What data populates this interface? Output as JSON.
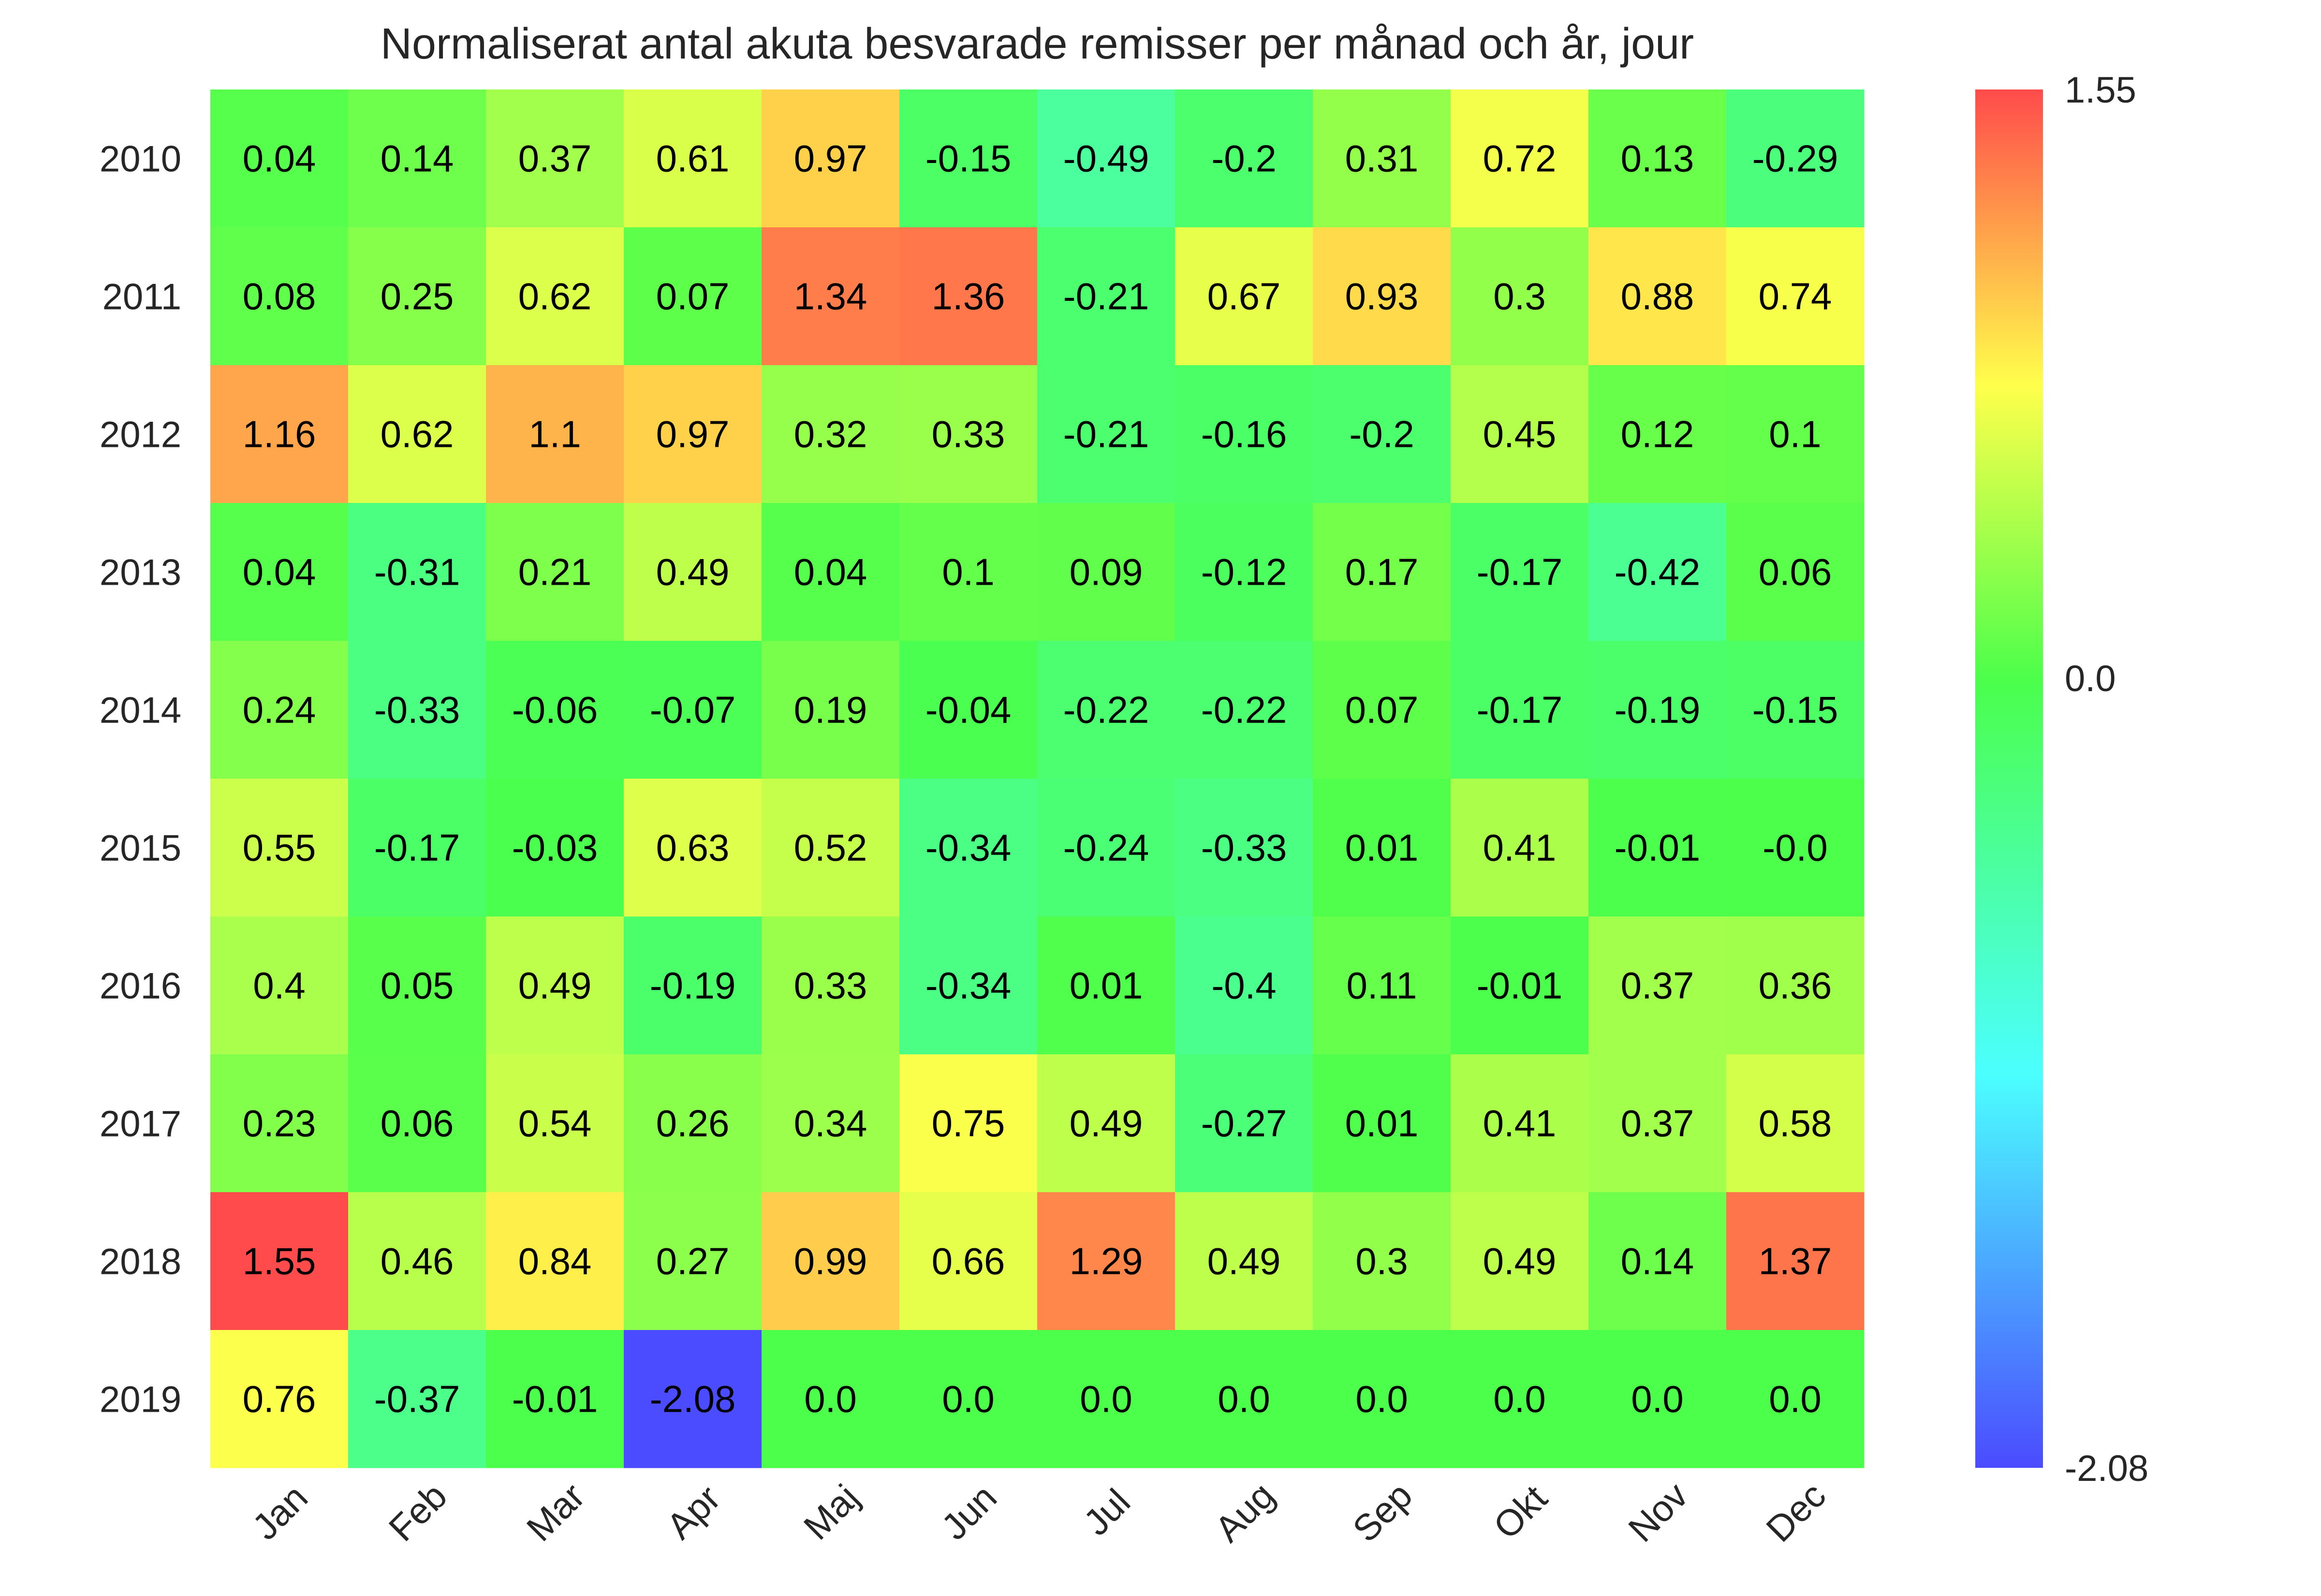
{
  "chart_data": {
    "type": "heatmap",
    "title": "Normaliserat antal akuta besvarade remisser per månad och år, jour",
    "x_categories": [
      "Jan",
      "Feb",
      "Mar",
      "Apr",
      "Maj",
      "Jun",
      "Jul",
      "Aug",
      "Sep",
      "Okt",
      "Nov",
      "Dec"
    ],
    "y_categories": [
      "2010",
      "2011",
      "2012",
      "2013",
      "2014",
      "2015",
      "2016",
      "2017",
      "2018",
      "2019"
    ],
    "values": [
      [
        "0.04",
        "0.14",
        "0.37",
        "0.61",
        "0.97",
        "-0.15",
        "-0.49",
        "-0.2",
        "0.31",
        "0.72",
        "0.13",
        "-0.29"
      ],
      [
        "0.08",
        "0.25",
        "0.62",
        "0.07",
        "1.34",
        "1.36",
        "-0.21",
        "0.67",
        "0.93",
        "0.3",
        "0.88",
        "0.74"
      ],
      [
        "1.16",
        "0.62",
        "1.1",
        "0.97",
        "0.32",
        "0.33",
        "-0.21",
        "-0.16",
        "-0.2",
        "0.45",
        "0.12",
        "0.1"
      ],
      [
        "0.04",
        "-0.31",
        "0.21",
        "0.49",
        "0.04",
        "0.1",
        "0.09",
        "-0.12",
        "0.17",
        "-0.17",
        "-0.42",
        "0.06"
      ],
      [
        "0.24",
        "-0.33",
        "-0.06",
        "-0.07",
        "0.19",
        "-0.04",
        "-0.22",
        "-0.22",
        "0.07",
        "-0.17",
        "-0.19",
        "-0.15"
      ],
      [
        "0.55",
        "-0.17",
        "-0.03",
        "0.63",
        "0.52",
        "-0.34",
        "-0.24",
        "-0.33",
        "0.01",
        "0.41",
        "-0.01",
        "-0.0"
      ],
      [
        "0.4",
        "0.05",
        "0.49",
        "-0.19",
        "0.33",
        "-0.34",
        "0.01",
        "-0.4",
        "0.11",
        "-0.01",
        "0.37",
        "0.36"
      ],
      [
        "0.23",
        "0.06",
        "0.54",
        "0.26",
        "0.34",
        "0.75",
        "0.49",
        "-0.27",
        "0.01",
        "0.41",
        "0.37",
        "0.58"
      ],
      [
        "1.55",
        "0.46",
        "0.84",
        "0.27",
        "0.99",
        "0.66",
        "1.29",
        "0.49",
        "0.3",
        "0.49",
        "0.14",
        "1.37"
      ],
      [
        "0.76",
        "-0.37",
        "-0.01",
        "-2.08",
        "0.0",
        "0.0",
        "0.0",
        "0.0",
        "0.0",
        "0.0",
        "0.0",
        "0.0"
      ]
    ],
    "colorbar": {
      "min": -2.08,
      "max": 1.55,
      "center": 0.0,
      "ticks": [
        "1.55",
        "0.0",
        "-2.08"
      ],
      "colormap": "rainbow (blue-cyan-green-yellow-red), diverging at 0",
      "colors": [
        "#4b4bff",
        "#4bffff",
        "#4bff4b",
        "#ffff4b",
        "#ff4b4b"
      ]
    },
    "grid": false,
    "legend": "colorbar right"
  }
}
